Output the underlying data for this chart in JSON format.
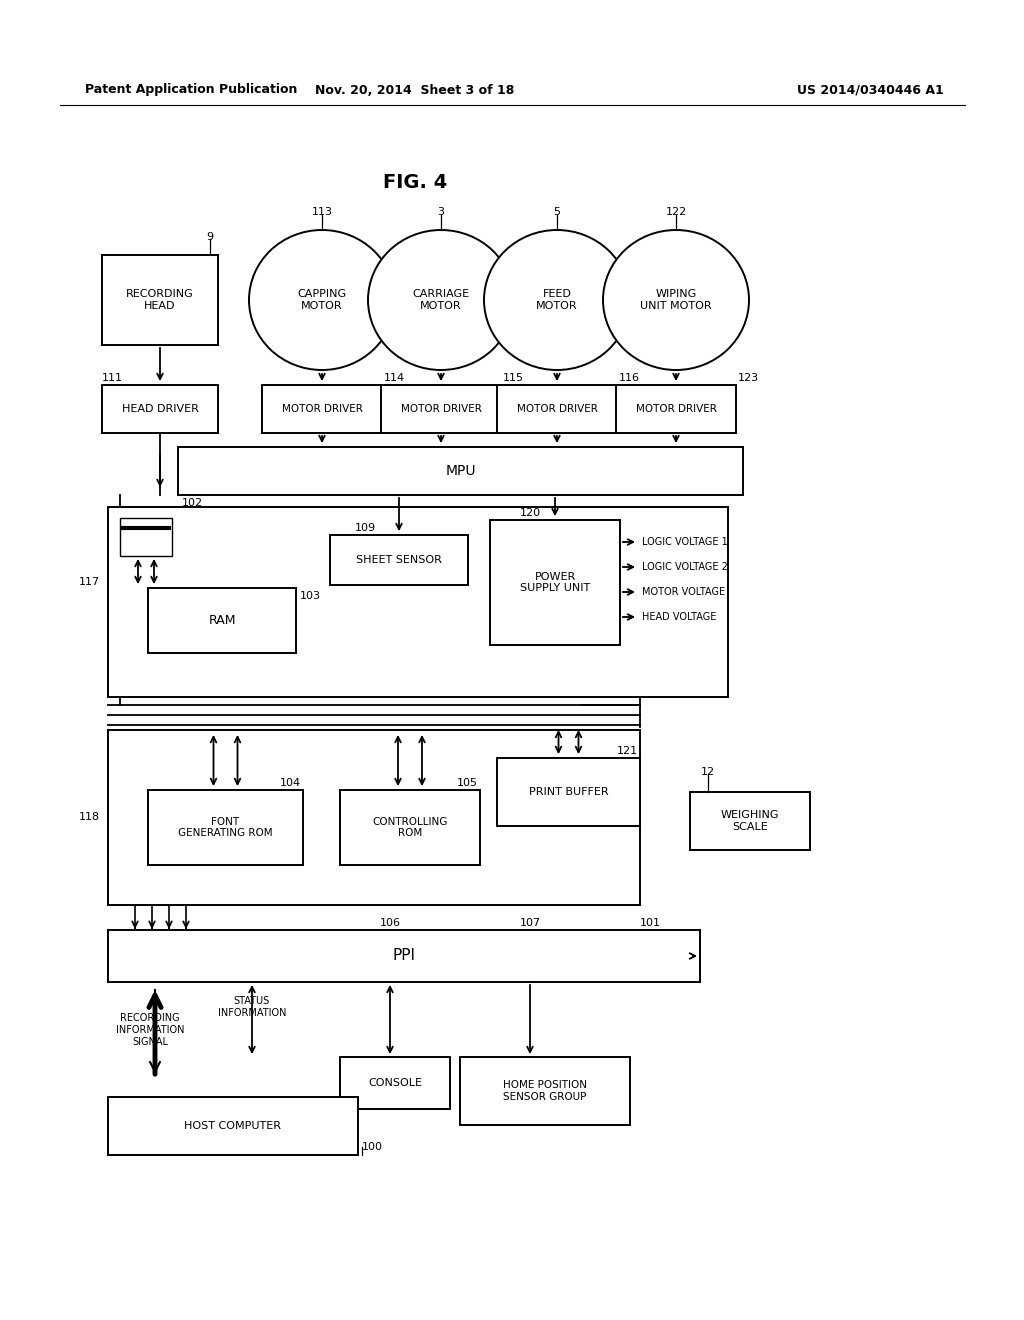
{
  "header_left": "Patent Application Publication",
  "header_mid": "Nov. 20, 2014  Sheet 3 of 18",
  "header_right": "US 2014/0340446 A1",
  "fig_title": "FIG. 4"
}
